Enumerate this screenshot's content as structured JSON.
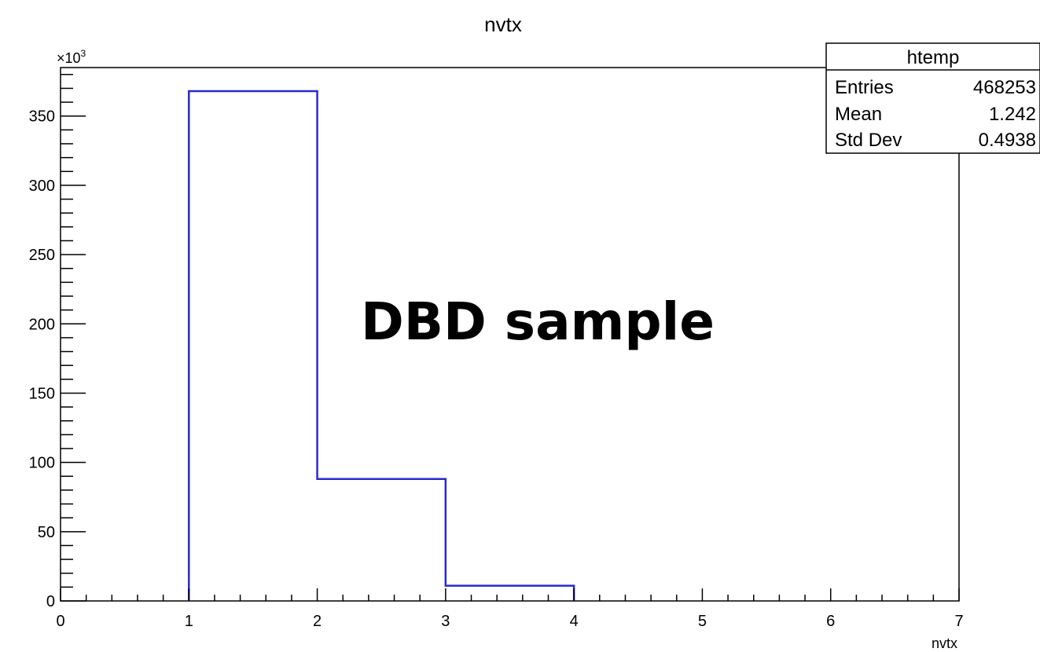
{
  "chart_data": {
    "type": "bar",
    "histogram": true,
    "title": "nvtx",
    "xlabel": "nvtx",
    "ylabel": "",
    "xlim": [
      0,
      7
    ],
    "ylim": [
      0,
      385
    ],
    "y_multiplier_label": "×10",
    "y_multiplier_exponent": "3",
    "x_ticks": [
      0,
      1,
      2,
      3,
      4,
      5,
      6,
      7
    ],
    "y_ticks": [
      0,
      50,
      100,
      150,
      200,
      250,
      300,
      350
    ],
    "bins": [
      {
        "x0": 1,
        "x1": 2,
        "value": 368
      },
      {
        "x0": 2,
        "x1": 3,
        "value": 88
      },
      {
        "x0": 3,
        "x1": 4,
        "value": 11
      }
    ],
    "line_color": "#2a2ad0",
    "grid": false,
    "legend": "none",
    "annotation": "DBD sample",
    "stats_box": {
      "name": "htemp",
      "placement": "top-right",
      "rows": [
        {
          "label": "Entries",
          "value": "468253"
        },
        {
          "label": "Mean",
          "value": "1.242"
        },
        {
          "label": "Std Dev",
          "value": "0.4938"
        }
      ]
    }
  }
}
